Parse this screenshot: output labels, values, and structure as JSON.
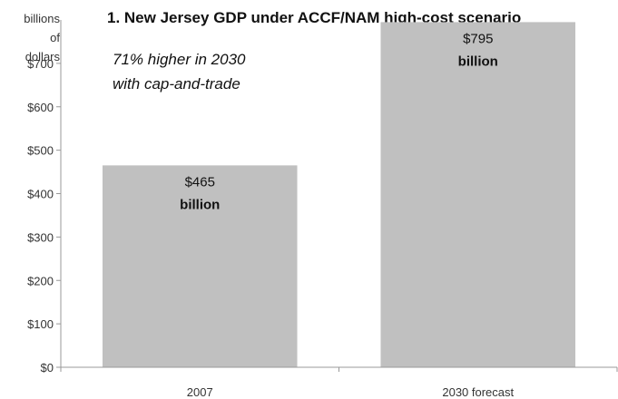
{
  "chart_data": {
    "type": "bar",
    "title": "1. New Jersey GDP under ACCF/NAM high-cost scenario",
    "ylabel_lines": [
      "billions",
      "of",
      "dollars"
    ],
    "categories": [
      "2007",
      "2030 forecast"
    ],
    "values": [
      465,
      795
    ],
    "ylim": [
      0,
      800
    ],
    "yticks": [
      0,
      100,
      200,
      300,
      400,
      500,
      600,
      700
    ],
    "ytick_labels": [
      "$0",
      "$100",
      "$200",
      "$300",
      "$400",
      "$500",
      "$600",
      "$700"
    ],
    "data_labels": [
      {
        "value": "$465",
        "unit": "billion"
      },
      {
        "value": "$795",
        "unit": "billion"
      }
    ],
    "annotation_lines": [
      "71% higher in 2030",
      "with cap-and-trade"
    ],
    "bar_color": "#c0c0c0",
    "grid": false,
    "legend": "none"
  }
}
